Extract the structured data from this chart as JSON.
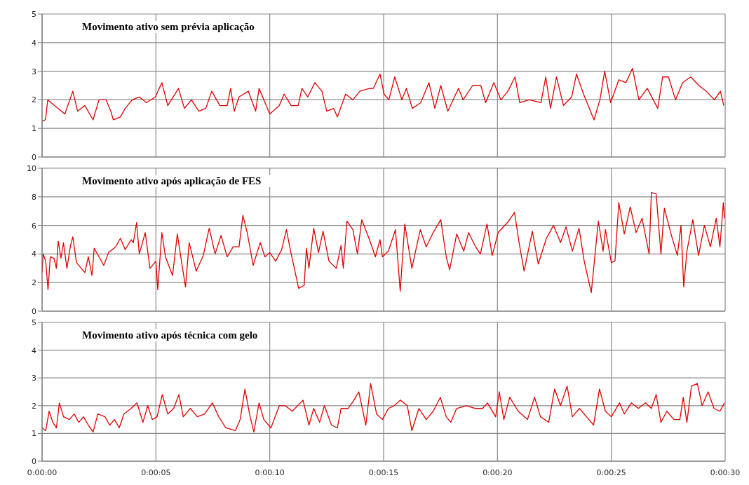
{
  "chart_data": [
    {
      "type": "line",
      "title": "Movimento ativo sem prévia aplicação",
      "color": "#e00000",
      "grid": true,
      "tick_labels": "y",
      "marker": "none",
      "x": [
        0,
        0.15,
        0.25,
        1.0,
        1.35,
        1.56,
        1.88,
        2.24,
        2.5,
        2.81,
        3.02,
        3.13,
        3.44,
        3.65,
        3.96,
        4.27,
        4.58,
        4.98,
        5.26,
        5.52,
        5.99,
        6.25,
        6.56,
        6.88,
        7.19,
        7.45,
        7.81,
        8.13,
        8.28,
        8.44,
        8.65,
        9.06,
        9.38,
        9.53,
        10.0,
        10.42,
        10.63,
        10.94,
        11.25,
        11.41,
        11.67,
        11.98,
        12.29,
        12.5,
        12.81,
        12.97,
        13.33,
        13.65,
        13.96,
        14.38,
        14.55,
        14.84,
        15.02,
        15.23,
        15.49,
        15.8,
        16.0,
        16.26,
        16.63,
        16.99,
        17.25,
        17.51,
        17.82,
        18.29,
        18.49,
        18.91,
        19.27,
        19.48,
        19.84,
        20.15,
        20.46,
        20.77,
        20.98,
        21.39,
        21.91,
        22.12,
        22.33,
        22.59,
        22.9,
        23.26,
        23.47,
        23.78,
        24.24,
        24.5,
        24.71,
        24.97,
        25.33,
        25.64,
        25.93,
        26.21,
        26.58,
        27.04,
        27.25,
        27.51,
        27.82,
        28.13,
        28.49,
        28.85,
        29.17,
        29.53,
        29.79,
        29.94
      ],
      "values": [
        1.25,
        1.3,
        2.0,
        1.5,
        2.3,
        1.6,
        1.8,
        1.3,
        2.0,
        2.0,
        1.6,
        1.3,
        1.4,
        1.7,
        2.0,
        2.1,
        1.9,
        2.1,
        2.6,
        1.8,
        2.4,
        1.7,
        2.0,
        1.6,
        1.7,
        2.3,
        1.8,
        1.8,
        2.4,
        1.6,
        2.1,
        2.3,
        1.6,
        2.4,
        1.5,
        1.8,
        2.2,
        1.8,
        1.8,
        2.4,
        2.1,
        2.6,
        2.3,
        1.6,
        1.7,
        1.4,
        2.2,
        2.0,
        2.3,
        2.4,
        2.4,
        2.9,
        2.2,
        2.0,
        2.8,
        2.0,
        2.4,
        1.7,
        1.9,
        2.6,
        1.7,
        2.5,
        1.6,
        2.4,
        2.0,
        2.5,
        2.5,
        1.9,
        2.6,
        2.0,
        2.3,
        2.8,
        1.9,
        2.0,
        1.9,
        2.8,
        1.7,
        2.8,
        1.8,
        2.1,
        2.9,
        2.2,
        1.3,
        2.0,
        3.0,
        1.9,
        2.7,
        2.6,
        3.1,
        2.0,
        2.4,
        1.7,
        2.8,
        2.8,
        2.0,
        2.6,
        2.8,
        2.5,
        2.3,
        2.0,
        2.3,
        1.8
      ],
      "xlim": [
        0,
        30
      ],
      "xticks": [
        {
          "value": 0,
          "label": null
        },
        {
          "value": 5,
          "label": null
        },
        {
          "value": 10,
          "label": null
        },
        {
          "value": 15,
          "label": null
        },
        {
          "value": 20,
          "label": null
        },
        {
          "value": 25,
          "label": null
        },
        {
          "value": 30,
          "label": null
        }
      ],
      "ylim": [
        0,
        5
      ],
      "yticks": [
        0,
        1,
        2,
        3,
        4,
        5
      ]
    },
    {
      "type": "line",
      "title": "Movimento ativo após aplicação de FES",
      "color": "#e00000",
      "grid": true,
      "tick_labels": "y",
      "marker": "none",
      "x": [
        0,
        0.05,
        0.16,
        0.26,
        0.36,
        0.52,
        0.63,
        0.71,
        0.83,
        0.94,
        1.09,
        1.25,
        1.35,
        1.51,
        1.72,
        1.88,
        2.03,
        2.19,
        2.29,
        2.5,
        2.71,
        2.92,
        3.23,
        3.44,
        3.65,
        3.91,
        4.01,
        4.15,
        4.27,
        4.53,
        4.74,
        5.0,
        5.08,
        5.26,
        5.42,
        5.73,
        5.94,
        6.15,
        6.3,
        6.46,
        6.77,
        7.08,
        7.34,
        7.6,
        7.86,
        8.13,
        8.39,
        8.65,
        8.82,
        9.01,
        9.27,
        9.58,
        9.79,
        10.0,
        10.26,
        10.52,
        10.73,
        10.94,
        11.27,
        11.51,
        11.61,
        11.72,
        11.93,
        12.14,
        12.34,
        12.6,
        12.92,
        13.13,
        13.23,
        13.39,
        13.65,
        13.85,
        14.04,
        14.38,
        14.64,
        14.84,
        14.95,
        15.21,
        15.52,
        15.73,
        15.93,
        16.24,
        16.61,
        16.87,
        17.18,
        17.51,
        17.75,
        17.9,
        18.21,
        18.52,
        18.73,
        19.04,
        19.25,
        19.54,
        19.77,
        20.03,
        20.44,
        20.75,
        20.96,
        21.17,
        21.53,
        21.79,
        22.15,
        22.46,
        22.77,
        23.01,
        23.29,
        23.58,
        23.81,
        24.12,
        24.43,
        24.64,
        24.74,
        25.0,
        25.16,
        25.33,
        25.57,
        25.83,
        26.09,
        26.35,
        26.66,
        26.76,
        26.97,
        27.18,
        27.33,
        27.64,
        27.9,
        28.06,
        28.18,
        28.32,
        28.58,
        28.83,
        29.09,
        29.35,
        29.61,
        29.77,
        29.92,
        29.97
      ],
      "values": [
        2.7,
        4.0,
        3.5,
        1.5,
        3.8,
        3.7,
        3.0,
        4.9,
        3.7,
        4.8,
        3.0,
        4.6,
        5.2,
        3.4,
        3.0,
        2.7,
        3.8,
        2.5,
        4.4,
        3.8,
        3.2,
        4.1,
        4.5,
        5.1,
        4.3,
        5.0,
        4.8,
        6.2,
        4.0,
        5.5,
        3.0,
        3.5,
        1.5,
        5.5,
        3.8,
        2.5,
        5.4,
        3.2,
        1.7,
        4.8,
        2.8,
        3.9,
        5.8,
        4.0,
        5.3,
        3.8,
        4.5,
        4.5,
        6.7,
        5.5,
        3.2,
        4.8,
        3.8,
        4.1,
        3.5,
        4.3,
        5.7,
        4.0,
        1.6,
        1.8,
        4.4,
        3.0,
        5.8,
        4.1,
        5.6,
        3.5,
        3.0,
        4.6,
        3.0,
        6.3,
        5.7,
        4.0,
        6.4,
        5.0,
        3.8,
        5.0,
        3.8,
        4.2,
        5.7,
        1.4,
        6.1,
        3.0,
        5.7,
        4.5,
        5.5,
        6.4,
        3.8,
        2.9,
        5.4,
        4.2,
        5.5,
        4.5,
        4.0,
        6.1,
        3.9,
        5.5,
        6.2,
        6.9,
        4.7,
        2.8,
        5.6,
        3.3,
        5.1,
        6.0,
        4.8,
        5.9,
        4.2,
        5.8,
        3.5,
        1.3,
        6.3,
        4.2,
        5.7,
        3.4,
        3.5,
        7.6,
        5.4,
        7.3,
        5.5,
        6.5,
        4.0,
        8.3,
        8.2,
        4.0,
        7.2,
        5.3,
        3.9,
        6.0,
        1.7,
        4.2,
        6.4,
        3.9,
        6.0,
        4.5,
        6.5,
        4.5,
        7.6,
        6.5
      ],
      "xlim": [
        0,
        30
      ],
      "xticks": [
        {
          "value": 0,
          "label": null
        },
        {
          "value": 5,
          "label": null
        },
        {
          "value": 10,
          "label": null
        },
        {
          "value": 15,
          "label": null
        },
        {
          "value": 20,
          "label": null
        },
        {
          "value": 25,
          "label": null
        },
        {
          "value": 30,
          "label": null
        }
      ],
      "ylim": [
        0,
        10
      ],
      "yticks": [
        0,
        2,
        4,
        6,
        8,
        10
      ]
    },
    {
      "type": "line",
      "title": "Movimento ativo após técnica com gelo",
      "color": "#e00000",
      "grid": true,
      "marker": "none",
      "x": [
        0,
        0.16,
        0.31,
        0.47,
        0.63,
        0.76,
        0.94,
        1.2,
        1.41,
        1.61,
        1.82,
        2.03,
        2.24,
        2.45,
        2.76,
        2.97,
        3.18,
        3.39,
        3.59,
        3.91,
        4.17,
        4.43,
        4.64,
        4.84,
        5.05,
        5.28,
        5.52,
        5.78,
        6.01,
        6.2,
        6.51,
        6.82,
        7.14,
        7.48,
        7.76,
        8.07,
        8.49,
        8.7,
        8.91,
        9.11,
        9.3,
        9.53,
        9.74,
        10.05,
        10.42,
        10.68,
        10.99,
        11.46,
        11.72,
        11.93,
        12.19,
        12.4,
        12.71,
        12.97,
        13.13,
        13.44,
        13.7,
        13.91,
        14.22,
        14.43,
        14.69,
        14.95,
        15.21,
        15.47,
        15.73,
        16.04,
        16.24,
        16.55,
        16.87,
        17.18,
        17.49,
        17.75,
        17.95,
        18.21,
        18.63,
        19.04,
        19.35,
        19.56,
        19.92,
        20.08,
        20.28,
        20.54,
        20.91,
        21.32,
        21.63,
        21.89,
        22.25,
        22.51,
        22.77,
        23.06,
        23.29,
        23.6,
        23.91,
        24.22,
        24.48,
        24.74,
        25.0,
        25.36,
        25.57,
        25.88,
        26.19,
        26.5,
        26.76,
        26.97,
        27.18,
        27.44,
        27.75,
        28.01,
        28.16,
        28.32,
        28.52,
        28.78,
        28.99,
        29.25,
        29.51,
        29.77,
        29.97
      ],
      "values": [
        1.2,
        1.1,
        1.8,
        1.4,
        1.2,
        2.1,
        1.6,
        1.5,
        1.7,
        1.4,
        1.6,
        1.3,
        1.05,
        1.7,
        1.6,
        1.3,
        1.5,
        1.2,
        1.7,
        1.9,
        2.1,
        1.4,
        2.0,
        1.5,
        1.6,
        2.4,
        1.7,
        1.9,
        2.4,
        1.6,
        1.9,
        1.6,
        1.7,
        2.1,
        1.6,
        1.2,
        1.1,
        1.5,
        2.6,
        1.7,
        1.05,
        2.1,
        1.5,
        1.2,
        2.0,
        2.0,
        1.8,
        2.2,
        1.3,
        1.9,
        1.4,
        2.0,
        1.3,
        1.2,
        1.9,
        1.9,
        2.2,
        2.5,
        1.3,
        2.8,
        1.7,
        1.5,
        1.9,
        2.0,
        2.2,
        2.0,
        1.1,
        1.9,
        1.5,
        1.8,
        2.3,
        1.6,
        1.4,
        1.9,
        2.0,
        1.9,
        1.9,
        2.1,
        1.6,
        2.5,
        1.5,
        2.3,
        1.8,
        1.5,
        2.3,
        1.6,
        1.4,
        2.6,
        2.0,
        2.7,
        1.6,
        1.9,
        1.6,
        1.3,
        2.6,
        1.8,
        1.6,
        2.1,
        1.7,
        2.1,
        1.9,
        2.1,
        1.9,
        2.4,
        1.4,
        1.8,
        1.5,
        1.5,
        2.3,
        1.4,
        2.7,
        2.8,
        2.0,
        2.5,
        1.9,
        1.8,
        2.1
      ],
      "xlim": [
        0,
        30
      ],
      "xticks": [
        {
          "value": 0,
          "label": "0:00:00"
        },
        {
          "value": 5,
          "label": "0:00:05"
        },
        {
          "value": 10,
          "label": "0:00:10"
        },
        {
          "value": 15,
          "label": "0:00:15"
        },
        {
          "value": 20,
          "label": "0:00:20"
        },
        {
          "value": 25,
          "label": "0:00:25"
        },
        {
          "value": 30,
          "label": "0:00:30"
        }
      ],
      "ylim": [
        0,
        5
      ],
      "yticks": [
        0,
        1,
        2,
        3,
        4,
        5
      ]
    }
  ]
}
